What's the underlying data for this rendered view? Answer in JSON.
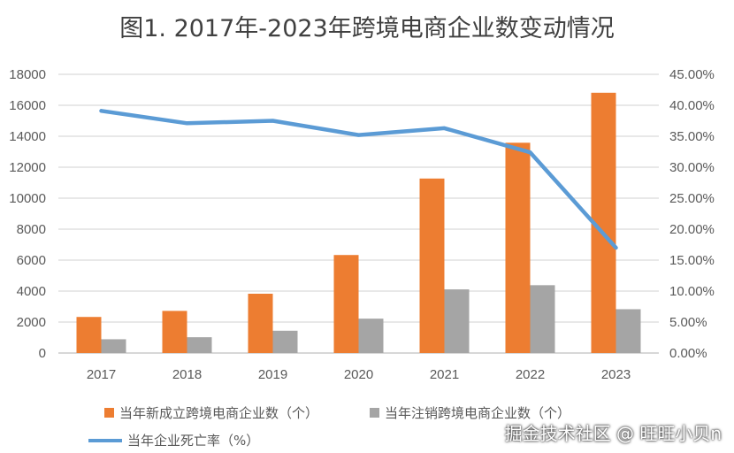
{
  "chart_data": {
    "type": "bar+line",
    "title": "图1. 2017年-2023年跨境电商企业数变动情况",
    "categories": [
      "2017",
      "2018",
      "2019",
      "2020",
      "2021",
      "2022",
      "2023"
    ],
    "series": [
      {
        "name": "当年新成立跨境电商企业数（个）",
        "type": "bar",
        "axis": "left",
        "color": "#ED7D31",
        "values": [
          2330,
          2720,
          3830,
          6330,
          11270,
          13580,
          16810
        ]
      },
      {
        "name": "当年注销跨境电商企业数（个）",
        "type": "bar",
        "axis": "left",
        "color": "#A5A5A5",
        "values": [
          890,
          1020,
          1440,
          2220,
          4110,
          4380,
          2830
        ]
      },
      {
        "name": "当年企业死亡率（%）",
        "type": "line",
        "axis": "right",
        "color": "#5B9BD5",
        "values": [
          39.1,
          37.1,
          37.5,
          35.2,
          36.3,
          32.4,
          17.0
        ]
      }
    ],
    "left_axis": {
      "ylim": [
        0,
        18000
      ],
      "ticks": [
        "0",
        "2000",
        "4000",
        "6000",
        "8000",
        "10000",
        "12000",
        "14000",
        "16000",
        "18000"
      ]
    },
    "right_axis": {
      "ylim": [
        0,
        45
      ],
      "ticks": [
        "0.00%",
        "5.00%",
        "10.00%",
        "15.00%",
        "20.00%",
        "25.00%",
        "30.00%",
        "35.00%",
        "40.00%",
        "45.00%"
      ]
    },
    "grid": true,
    "legend_position": "bottom"
  },
  "watermark": "掘金技术社区 @ 旺旺小贝n"
}
